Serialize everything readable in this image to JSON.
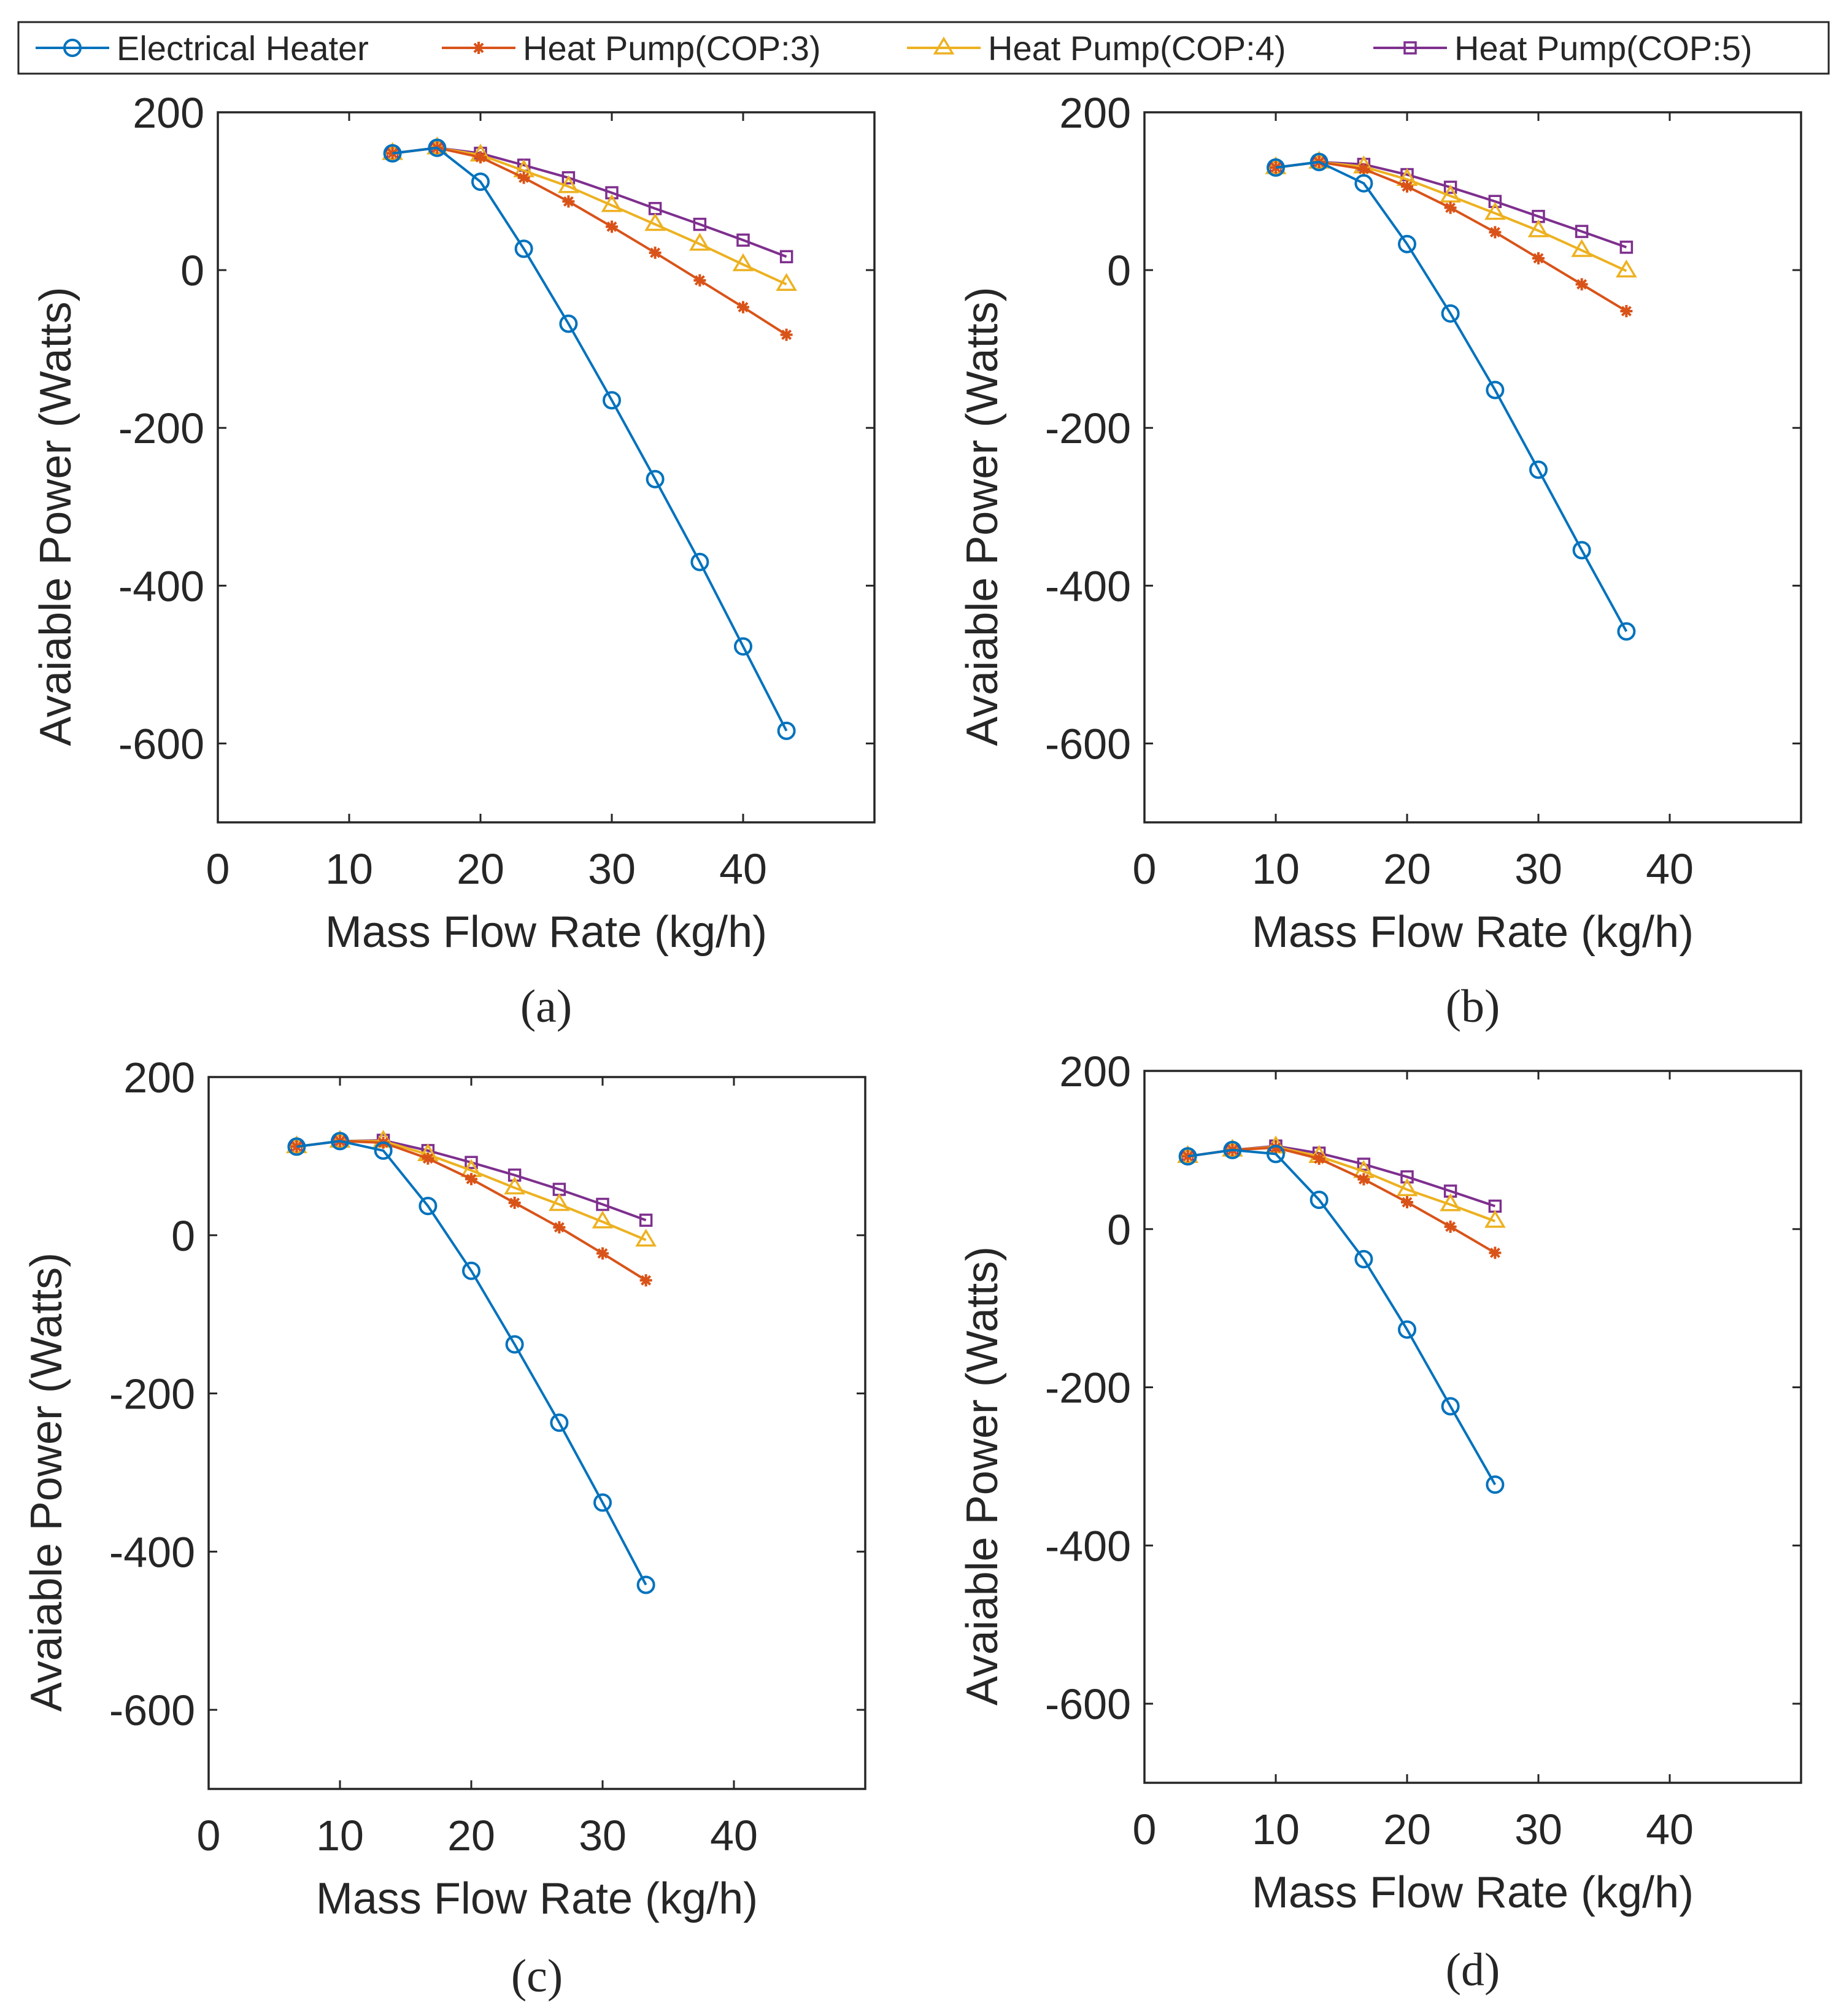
{
  "legend": {
    "position": "top",
    "entries": [
      {
        "label": "Electrical Heater",
        "color": "#0072BD",
        "marker": "circle"
      },
      {
        "label": "Heat Pump(COP:3)",
        "color": "#D95319",
        "marker": "asterisk"
      },
      {
        "label": "Heat Pump(COP:4)",
        "color": "#EDB120",
        "marker": "triangle"
      },
      {
        "label": "Heat Pump(COP:5)",
        "color": "#7E2F8E",
        "marker": "square"
      }
    ]
  },
  "chart_data": [
    {
      "type": "line",
      "caption": "(a)",
      "xlabel": "Mass Flow Rate (kg/h)",
      "ylabel": "Avaiable Power (Watts)",
      "xlim": [
        0,
        50
      ],
      "ylim": [
        -700,
        200
      ],
      "xticks": [
        0,
        10,
        20,
        30,
        40
      ],
      "yticks": [
        200,
        0,
        -200,
        -400,
        -600
      ],
      "xtick_labels": [
        "0",
        "10",
        "20",
        "30",
        "40"
      ],
      "ytick_labels": [
        "200",
        "0",
        "-200",
        "-400",
        "-600"
      ],
      "grid": false,
      "x": [
        13.3,
        16.7,
        20.0,
        23.3,
        26.7,
        30.0,
        33.3,
        36.7,
        40.0,
        43.3
      ],
      "series": [
        {
          "name": "Electrical Heater",
          "values": [
            148,
            155,
            112,
            27,
            -68,
            -165,
            -265,
            -370,
            -477,
            -584
          ]
        },
        {
          "name": "Heat Pump(COP:3)",
          "values": [
            148,
            155,
            143,
            117,
            87,
            55,
            22,
            -13,
            -47,
            -82
          ]
        },
        {
          "name": "Heat Pump(COP:4)",
          "values": [
            148,
            155,
            146,
            126,
            106,
            82,
            58,
            33,
            7,
            -18
          ]
        },
        {
          "name": "Heat Pump(COP:5)",
          "values": [
            148,
            155,
            148,
            133,
            117,
            98,
            78,
            58,
            38,
            17
          ]
        }
      ]
    },
    {
      "type": "line",
      "caption": "(b)",
      "xlabel": "Mass Flow Rate (kg/h)",
      "ylabel": "Avaiable Power (Watts)",
      "xlim": [
        0,
        50
      ],
      "ylim": [
        -700,
        200
      ],
      "xticks": [
        0,
        10,
        20,
        30,
        40
      ],
      "yticks": [
        200,
        0,
        -200,
        -400,
        -600
      ],
      "xtick_labels": [
        "0",
        "10",
        "20",
        "30",
        "40"
      ],
      "ytick_labels": [
        "200",
        "0",
        "-200",
        "-400",
        "-600"
      ],
      "grid": false,
      "x": [
        10.0,
        13.3,
        16.7,
        20.0,
        23.3,
        26.7,
        30.0,
        33.3,
        36.7
      ],
      "series": [
        {
          "name": "Electrical Heater",
          "values": [
            130,
            137,
            110,
            33,
            -55,
            -152,
            -253,
            -355,
            -458
          ]
        },
        {
          "name": "Heat Pump(COP:3)",
          "values": [
            130,
            137,
            128,
            106,
            79,
            48,
            15,
            -18,
            -52
          ]
        },
        {
          "name": "Heat Pump(COP:4)",
          "values": [
            130,
            137,
            131,
            115,
            94,
            72,
            50,
            25,
            -1
          ]
        },
        {
          "name": "Heat Pump(COP:5)",
          "values": [
            130,
            137,
            134,
            121,
            105,
            87,
            68,
            49,
            29
          ]
        }
      ]
    },
    {
      "type": "line",
      "caption": "(c)",
      "xlabel": "Mass Flow Rate (kg/h)",
      "ylabel": "Avaiable Power (Watts)",
      "xlim": [
        0,
        50
      ],
      "ylim": [
        -700,
        200
      ],
      "xticks": [
        0,
        10,
        20,
        30,
        40
      ],
      "yticks": [
        200,
        0,
        -200,
        -400,
        -600
      ],
      "xtick_labels": [
        "0",
        "10",
        "20",
        "30",
        "40"
      ],
      "ytick_labels": [
        "200",
        "0",
        "-200",
        "-400",
        "-600"
      ],
      "grid": false,
      "x": [
        6.7,
        10.0,
        13.3,
        16.7,
        20.0,
        23.3,
        26.7,
        30.0,
        33.3
      ],
      "series": [
        {
          "name": "Electrical Heater",
          "values": [
            112,
            119,
            107,
            37,
            -45,
            -138,
            -237,
            -338,
            -442
          ]
        },
        {
          "name": "Heat Pump(COP:3)",
          "values": [
            112,
            119,
            117,
            97,
            71,
            41,
            10,
            -23,
            -57
          ]
        },
        {
          "name": "Heat Pump(COP:4)",
          "values": [
            112,
            119,
            119,
            102,
            82,
            60,
            39,
            17,
            -6
          ]
        },
        {
          "name": "Heat Pump(COP:5)",
          "values": [
            112,
            119,
            120,
            107,
            92,
            76,
            58,
            39,
            19
          ]
        }
      ]
    },
    {
      "type": "line",
      "caption": "(d)",
      "xlabel": "Mass Flow Rate (kg/h)",
      "ylabel": "Avaiable Power (Watts)",
      "xlim": [
        0,
        50
      ],
      "ylim": [
        -700,
        200
      ],
      "xticks": [
        0,
        10,
        20,
        30,
        40
      ],
      "yticks": [
        200,
        0,
        -200,
        -400,
        -600
      ],
      "xtick_labels": [
        "0",
        "10",
        "20",
        "30",
        "40"
      ],
      "ytick_labels": [
        "200",
        "0",
        "-200",
        "-400",
        "-600"
      ],
      "grid": false,
      "x": [
        3.3,
        6.7,
        10.0,
        13.3,
        16.7,
        20.0,
        23.3,
        26.7
      ],
      "series": [
        {
          "name": "Electrical Heater",
          "values": [
            92,
            100,
            95,
            37,
            -38,
            -127,
            -224,
            -323
          ]
        },
        {
          "name": "Heat Pump(COP:3)",
          "values": [
            92,
            100,
            103,
            89,
            63,
            34,
            3,
            -30
          ]
        },
        {
          "name": "Heat Pump(COP:4)",
          "values": [
            92,
            100,
            104,
            92,
            73,
            50,
            31,
            10
          ]
        },
        {
          "name": "Heat Pump(COP:5)",
          "values": [
            92,
            100,
            105,
            96,
            82,
            66,
            48,
            29
          ]
        }
      ]
    }
  ]
}
